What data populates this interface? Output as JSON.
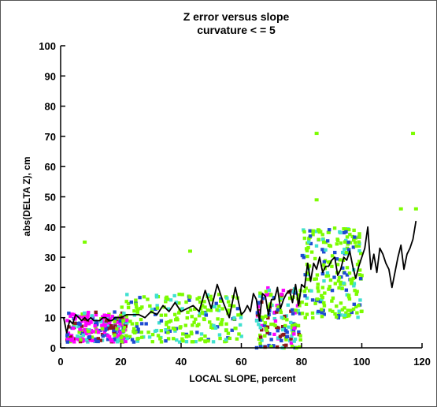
{
  "chart_data": {
    "type": "scatter",
    "title": "Z error versus slope",
    "subtitle": "curvature < = 5",
    "xlabel": "LOCAL SLOPE, percent",
    "ylabel": "abs(DELTA Z), cm",
    "xlim": [
      0,
      120
    ],
    "ylim": [
      0,
      100
    ],
    "xticks": [
      "0",
      "20",
      "40",
      "60",
      "80",
      "100",
      "120"
    ],
    "yticks": [
      "0",
      "10",
      "20",
      "30",
      "40",
      "50",
      "60",
      "70",
      "80",
      "90",
      "100"
    ],
    "grid": false,
    "density_colors": {
      "low": "#7cfc00",
      "low_mid": "#40e0d0",
      "mid": "#1e4bd2",
      "high": "#ff00ff",
      "accent": "#8b1a1a"
    },
    "density_clusters": [
      {
        "x_range": [
          2,
          22
        ],
        "y_range": [
          2,
          12
        ],
        "level": "high"
      },
      {
        "x_range": [
          65,
          80
        ],
        "y_range": [
          0,
          20
        ],
        "level": "mid"
      },
      {
        "x_range": [
          20,
          60
        ],
        "y_range": [
          2,
          18
        ],
        "level": "low"
      },
      {
        "x_range": [
          80,
          100
        ],
        "y_range": [
          10,
          40
        ],
        "level": "low"
      }
    ],
    "outliers": [
      {
        "x": 85,
        "y": 71
      },
      {
        "x": 117,
        "y": 71
      },
      {
        "x": 85,
        "y": 49
      },
      {
        "x": 8,
        "y": 35
      },
      {
        "x": 43,
        "y": 32
      },
      {
        "x": 113,
        "y": 46
      },
      {
        "x": 118,
        "y": 46
      }
    ],
    "series": [
      {
        "type": "line",
        "color": "#000000",
        "x": [
          1,
          2,
          3,
          4,
          5,
          6,
          7,
          8,
          9,
          10,
          11,
          12,
          13,
          14,
          15,
          16,
          17,
          18,
          19,
          20,
          22,
          24,
          26,
          28,
          30,
          32,
          34,
          36,
          38,
          40,
          42,
          44,
          46,
          48,
          50,
          52,
          54,
          56,
          58,
          60,
          61,
          62,
          63,
          64,
          65,
          66,
          67,
          68,
          69,
          70,
          71,
          72,
          73,
          74,
          75,
          76,
          77,
          78,
          79,
          80,
          81,
          82,
          83,
          84,
          85,
          86,
          87,
          88,
          89,
          90,
          91,
          92,
          93,
          94,
          95,
          96,
          97,
          98,
          99,
          100,
          101,
          102,
          103,
          104,
          105,
          106,
          107,
          108,
          109,
          110,
          111,
          112,
          113,
          114,
          115,
          116,
          117,
          118
        ],
        "y": [
          10,
          5,
          9,
          8,
          11,
          10,
          9,
          10,
          9,
          10,
          9,
          9,
          9,
          10,
          10,
          9,
          9,
          10,
          10,
          10,
          11,
          11,
          11,
          10,
          12,
          11,
          14,
          12,
          15,
          12,
          13,
          14,
          12,
          19,
          13,
          21,
          15,
          10,
          20,
          11,
          12,
          14,
          12,
          18,
          16,
          9,
          18,
          17,
          11,
          16,
          16,
          20,
          13,
          16,
          18,
          19,
          15,
          21,
          14,
          21,
          20,
          28,
          22,
          28,
          26,
          30,
          25,
          27,
          27,
          29,
          30,
          24,
          26,
          30,
          29,
          32,
          27,
          23,
          27,
          30,
          33,
          40,
          26,
          31,
          25,
          33,
          31,
          28,
          26,
          20,
          25,
          30,
          34,
          26,
          31,
          33,
          36,
          42
        ]
      }
    ]
  }
}
